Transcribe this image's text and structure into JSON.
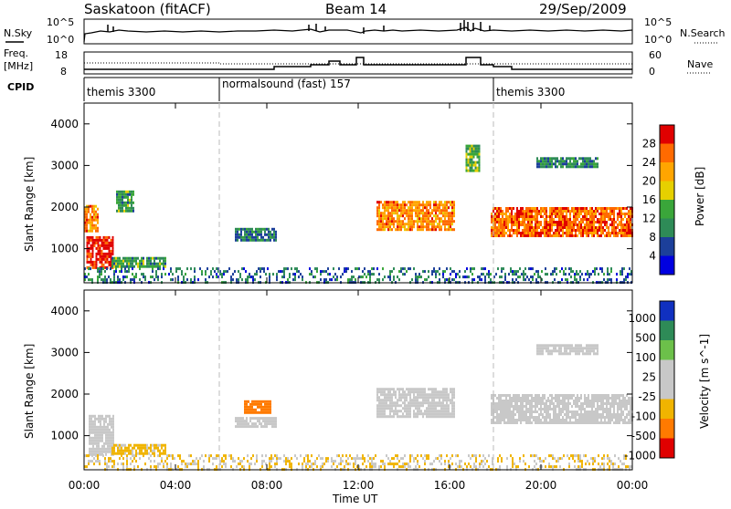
{
  "header": {
    "station": "Saskatoon (fitACF)",
    "beam": "Beam 14",
    "date": "29/Sep/2009"
  },
  "noise_panel": {
    "left_label": "N.Sky",
    "left_ticks": [
      "10^5",
      "10^0"
    ],
    "right_label": "N.Search",
    "right_ticks": [
      "10^5",
      "10^0"
    ]
  },
  "freq_panel": {
    "left_label_1": "Freq.",
    "left_label_2": "[MHz]",
    "left_ticks": [
      "18",
      "8"
    ],
    "right_label": "Nave",
    "right_ticks": [
      "60",
      "0"
    ]
  },
  "cpid": {
    "label": "CPID",
    "segments": [
      {
        "name": "themis 3300",
        "start_hour": 0
      },
      {
        "name": "normalsound (fast) 157",
        "start_hour": 6
      },
      {
        "name": "themis 3300",
        "start_hour": 18
      }
    ]
  },
  "chart_data": [
    {
      "type": "heatmap",
      "title": "",
      "xlabel": "Time UT",
      "ylabel": "Slant Range [km]",
      "x_ticks": [
        "00:00",
        "04:00",
        "08:00",
        "12:00",
        "16:00",
        "20:00",
        "00:00"
      ],
      "xlim_hours": [
        0,
        24
      ],
      "ylim": [
        180,
        4500
      ],
      "y_ticks": [
        1000,
        2000,
        3000,
        4000
      ],
      "colorbar": {
        "label": "Power [dB]",
        "ticks": [
          "28",
          "24",
          "20",
          "16",
          "12",
          "8",
          "4"
        ],
        "colors": [
          "#e00000",
          "#ff6a00",
          "#ffa500",
          "#e6d000",
          "#3aa63a",
          "#2e8b57",
          "#1c3f9a",
          "#0000e0"
        ]
      },
      "echo_regions": [
        {
          "t": [
            0.1,
            1.3
          ],
          "r": [
            550,
            1300
          ],
          "level": 28
        },
        {
          "t": [
            0.0,
            0.6
          ],
          "r": [
            1450,
            2050
          ],
          "level": 22
        },
        {
          "t": [
            1.4,
            2.2
          ],
          "r": [
            1900,
            2400
          ],
          "level": 10
        },
        {
          "t": [
            1.2,
            3.6
          ],
          "r": [
            550,
            800
          ],
          "level": 10
        },
        {
          "t": [
            6.6,
            8.4
          ],
          "r": [
            1200,
            1500
          ],
          "level": 7
        },
        {
          "t": [
            12.8,
            16.2
          ],
          "r": [
            1450,
            2150
          ],
          "level": 22
        },
        {
          "t": [
            16.7,
            17.3
          ],
          "r": [
            2900,
            3500
          ],
          "level": 12
        },
        {
          "t": [
            17.8,
            24.0
          ],
          "r": [
            1300,
            2000
          ],
          "level": 24
        },
        {
          "t": [
            19.8,
            22.5
          ],
          "r": [
            2950,
            3200
          ],
          "level": 8
        },
        {
          "t": [
            0.0,
            24.0
          ],
          "r": [
            180,
            550
          ],
          "level": 6
        }
      ]
    },
    {
      "type": "heatmap",
      "title": "",
      "xlabel": "Time UT",
      "ylabel": "Slant Range [km]",
      "x_ticks": [
        "00:00",
        "04:00",
        "08:00",
        "12:00",
        "16:00",
        "20:00",
        "00:00"
      ],
      "xlim_hours": [
        0,
        24
      ],
      "ylim": [
        180,
        4500
      ],
      "y_ticks": [
        1000,
        2000,
        3000,
        4000
      ],
      "colorbar": {
        "label": "Velocity [m s^-1]",
        "ticks": [
          "1000",
          "500",
          "100",
          "25",
          "-25",
          "-100",
          "-500",
          "-1000"
        ],
        "colors": [
          "#1030c0",
          "#2e8b57",
          "#6cc04a",
          "#c8c8c8",
          "#c8c8c8",
          "#f0b400",
          "#ff7a00",
          "#e00000"
        ]
      },
      "echo_regions": [
        {
          "t": [
            0.2,
            1.3
          ],
          "r": [
            550,
            1500
          ],
          "velocity": 20
        },
        {
          "t": [
            1.2,
            3.6
          ],
          "r": [
            550,
            800
          ],
          "velocity": -80
        },
        {
          "t": [
            7.0,
            8.2
          ],
          "r": [
            1550,
            1850
          ],
          "velocity": -400
        },
        {
          "t": [
            6.6,
            8.4
          ],
          "r": [
            1200,
            1450
          ],
          "velocity": 10
        },
        {
          "t": [
            12.8,
            16.2
          ],
          "r": [
            1450,
            2150
          ],
          "velocity": 0
        },
        {
          "t": [
            17.8,
            24.0
          ],
          "r": [
            1300,
            2000
          ],
          "velocity": 0
        },
        {
          "t": [
            19.8,
            22.5
          ],
          "r": [
            2950,
            3200
          ],
          "velocity": 0
        },
        {
          "t": [
            0.0,
            24.0
          ],
          "r": [
            180,
            550
          ],
          "velocity": -60
        }
      ]
    }
  ]
}
